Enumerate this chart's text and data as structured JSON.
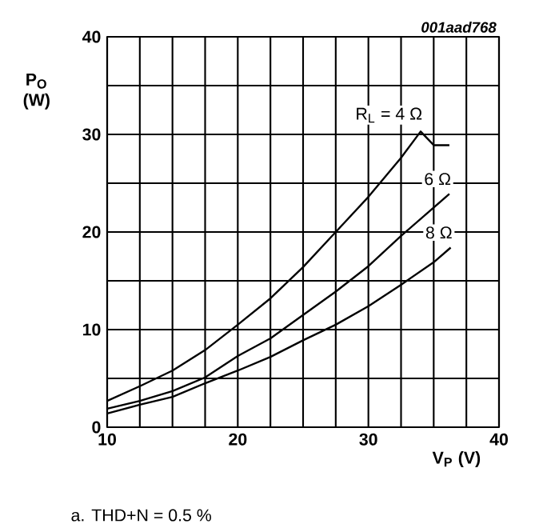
{
  "chart_data": {
    "type": "line",
    "xlabel": "V$_{P}$ (V)",
    "ylabel": "P$_{O}$ (W)",
    "annotations": [
      "001aad768",
      "a. THD+N = 0.5 %"
    ],
    "xlim": [
      10,
      40
    ],
    "ylim": [
      0,
      40
    ],
    "xticks": [
      10,
      {
        "value": 12.5,
        "label": null
      },
      {
        "value": 15,
        "label": null
      },
      {
        "value": 17.5,
        "label": null
      },
      20,
      {
        "value": 22.5,
        "label": null
      },
      {
        "value": 25,
        "label": null
      },
      {
        "value": 27.5,
        "label": null
      },
      30,
      {
        "value": 32.5,
        "label": null
      },
      {
        "value": 35,
        "label": null
      },
      {
        "value": 37.5,
        "label": null
      },
      40
    ],
    "yticks": [
      0,
      {
        "value": 5,
        "label": null
      },
      10,
      {
        "value": 15,
        "label": null
      },
      20,
      {
        "value": 25,
        "label": null
      },
      30,
      {
        "value": 35,
        "label": null
      },
      40
    ],
    "grid": true,
    "legend": false,
    "marker": "none",
    "line_style": "solid",
    "series": [
      {
        "name": "R$_{L}$ = 4 Ω",
        "color": "#000000",
        "x": [
          10,
          12.5,
          15,
          17.5,
          20,
          22.5,
          25,
          27.5,
          30,
          32.5,
          34,
          35,
          36.2
        ],
        "values": [
          2.7,
          4.2,
          5.8,
          7.9,
          10.5,
          13.2,
          16.4,
          20,
          23.6,
          27.6,
          30.3,
          28.9,
          28.9
        ]
      },
      {
        "name": "6 Ω",
        "color": "#000000",
        "x": [
          10,
          12.5,
          15,
          17.5,
          20,
          22.5,
          25,
          27.5,
          30,
          32.5,
          36.2
        ],
        "values": [
          1.9,
          2.7,
          3.7,
          5.1,
          7.3,
          9.1,
          11.5,
          13.9,
          16.5,
          19.6,
          23.9
        ]
      },
      {
        "name": "8 Ω",
        "color": "#000000",
        "x": [
          10,
          12.5,
          15,
          17.5,
          20,
          22.5,
          25,
          27.5,
          30,
          32.5,
          35,
          36.3
        ],
        "values": [
          1.4,
          2.3,
          3.1,
          4.5,
          5.8,
          7.2,
          8.9,
          10.5,
          12.4,
          14.6,
          16.9,
          18.4
        ]
      }
    ]
  }
}
